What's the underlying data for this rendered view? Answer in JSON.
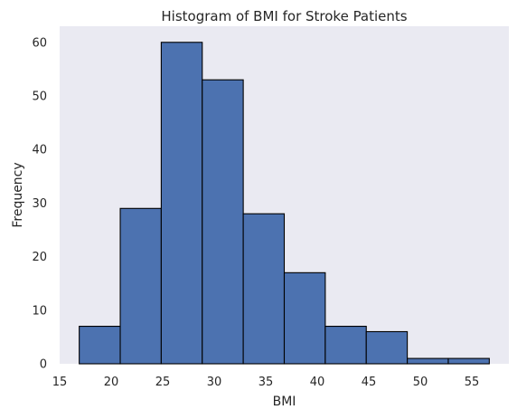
{
  "chart_data": {
    "type": "bar",
    "title": "Histogram of BMI for Stroke Patients",
    "xlabel": "BMI",
    "ylabel": "Frequency",
    "bins": [
      {
        "x0": 16.9,
        "x1": 20.88,
        "count": 7
      },
      {
        "x0": 20.88,
        "x1": 24.86,
        "count": 29
      },
      {
        "x0": 24.86,
        "x1": 28.84,
        "count": 60
      },
      {
        "x0": 28.84,
        "x1": 32.82,
        "count": 53
      },
      {
        "x0": 32.82,
        "x1": 36.8,
        "count": 28
      },
      {
        "x0": 36.8,
        "x1": 40.78,
        "count": 17
      },
      {
        "x0": 40.78,
        "x1": 44.76,
        "count": 7
      },
      {
        "x0": 44.76,
        "x1": 48.74,
        "count": 6
      },
      {
        "x0": 48.74,
        "x1": 52.72,
        "count": 1
      },
      {
        "x0": 52.72,
        "x1": 56.7,
        "count": 1
      }
    ],
    "xlim": [
      15.0,
      58.6
    ],
    "ylim": [
      0,
      63
    ],
    "xticks": [
      15,
      20,
      25,
      30,
      35,
      40,
      45,
      50,
      55
    ],
    "yticks": [
      0,
      10,
      20,
      30,
      40,
      50,
      60
    ],
    "grid": false,
    "colors": {
      "bar_fill": "#4c72b0",
      "bar_edge": "#000000",
      "plot_background": "#eaeaf2"
    }
  }
}
